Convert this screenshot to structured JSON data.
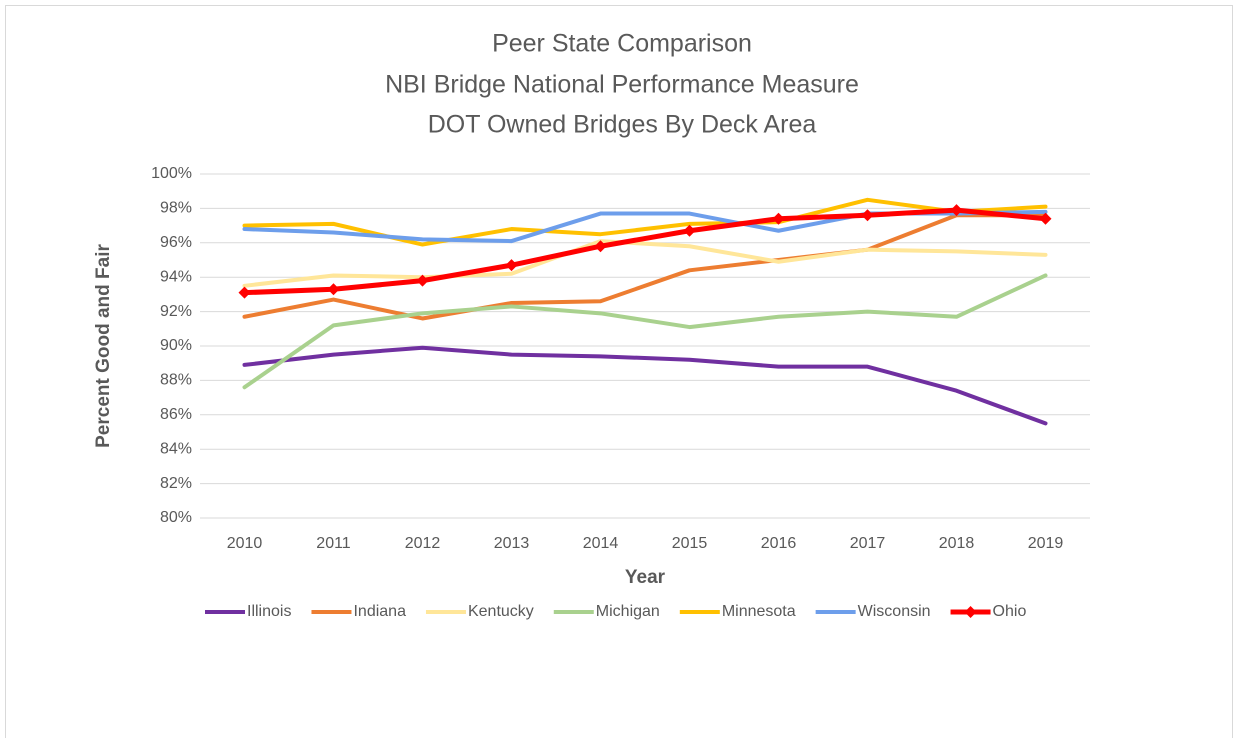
{
  "chart_data": {
    "type": "line",
    "title": [
      "Peer State Comparison",
      "NBI Bridge National Performance Measure",
      "DOT Owned Bridges By Deck Area"
    ],
    "x_label": "Year",
    "y_label": "Percent Good and Fair",
    "categories": [
      2010,
      2011,
      2012,
      2013,
      2014,
      2015,
      2016,
      2017,
      2018,
      2019
    ],
    "ylim": [
      80,
      100
    ],
    "yticks": [
      {
        "value": 80,
        "label": "80%"
      },
      {
        "value": 82,
        "label": "82%"
      },
      {
        "value": 84,
        "label": "84%"
      },
      {
        "value": 86,
        "label": "86%"
      },
      {
        "value": 88,
        "label": "88%"
      },
      {
        "value": 90,
        "label": "90%"
      },
      {
        "value": 92,
        "label": "92%"
      },
      {
        "value": 94,
        "label": "94%"
      },
      {
        "value": 96,
        "label": "96%"
      },
      {
        "value": 98,
        "label": "98%"
      },
      {
        "value": 100,
        "label": "100%"
      }
    ],
    "grid": true,
    "legend": "bottom",
    "series": [
      {
        "name": "Illinois",
        "color": "#7030a0",
        "values": [
          88.9,
          89.5,
          89.9,
          89.5,
          89.4,
          89.2,
          88.8,
          88.8,
          87.4,
          85.5
        ]
      },
      {
        "name": "Indiana",
        "color": "#ed7d31",
        "values": [
          91.7,
          92.7,
          91.6,
          92.5,
          92.6,
          94.4,
          95.0,
          95.6,
          97.6,
          97.6
        ]
      },
      {
        "name": "Kentucky",
        "color": "#ffe699",
        "values": [
          93.5,
          94.1,
          94.0,
          94.2,
          96.1,
          95.8,
          94.9,
          95.6,
          95.5,
          95.3
        ]
      },
      {
        "name": "Michigan",
        "color": "#a9d18e",
        "values": [
          87.6,
          91.2,
          91.9,
          92.3,
          91.9,
          91.1,
          91.7,
          92.0,
          91.7,
          94.1
        ]
      },
      {
        "name": "Minnesota",
        "color": "#ffc000",
        "values": [
          97.0,
          97.1,
          95.9,
          96.8,
          96.5,
          97.1,
          97.2,
          98.5,
          97.8,
          98.1
        ]
      },
      {
        "name": "Wisconsin",
        "color": "#6d9eeb",
        "values": [
          96.8,
          96.6,
          96.2,
          96.1,
          97.7,
          97.7,
          96.7,
          97.7,
          97.7,
          97.8
        ]
      },
      {
        "name": "Ohio",
        "color": "#ff0000",
        "marker": "diamond",
        "values": [
          93.1,
          93.3,
          93.8,
          94.7,
          95.8,
          96.7,
          97.4,
          97.6,
          97.9,
          97.4
        ]
      }
    ]
  }
}
